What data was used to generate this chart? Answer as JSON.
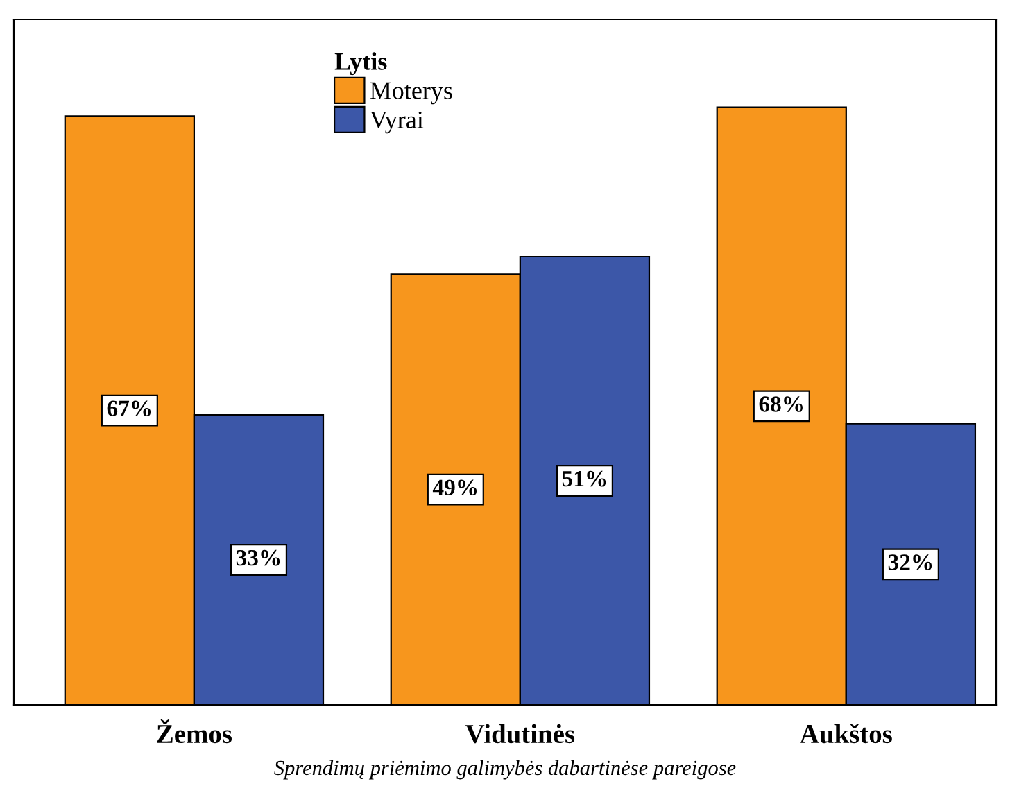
{
  "chart_data": {
    "type": "bar",
    "xlabel": "Sprendimų priėmimo galimybės dabartinėse pareigose",
    "legend_title": "Lytis",
    "categories": [
      "Žemos",
      "Vidutinės",
      "Aukštos"
    ],
    "series": [
      {
        "name": "Moterys",
        "color": "#f7961d",
        "values": [
          67,
          49,
          68
        ],
        "value_labels": [
          "67%",
          "49%",
          "68%"
        ]
      },
      {
        "name": "Vyrai",
        "color": "#3c57a8",
        "values": [
          33,
          51,
          32
        ],
        "value_labels": [
          "33%",
          "51%",
          "32%"
        ]
      }
    ],
    "ylim": [
      0,
      78
    ],
    "tick_labels": "x",
    "legend": "top",
    "grid": false
  }
}
